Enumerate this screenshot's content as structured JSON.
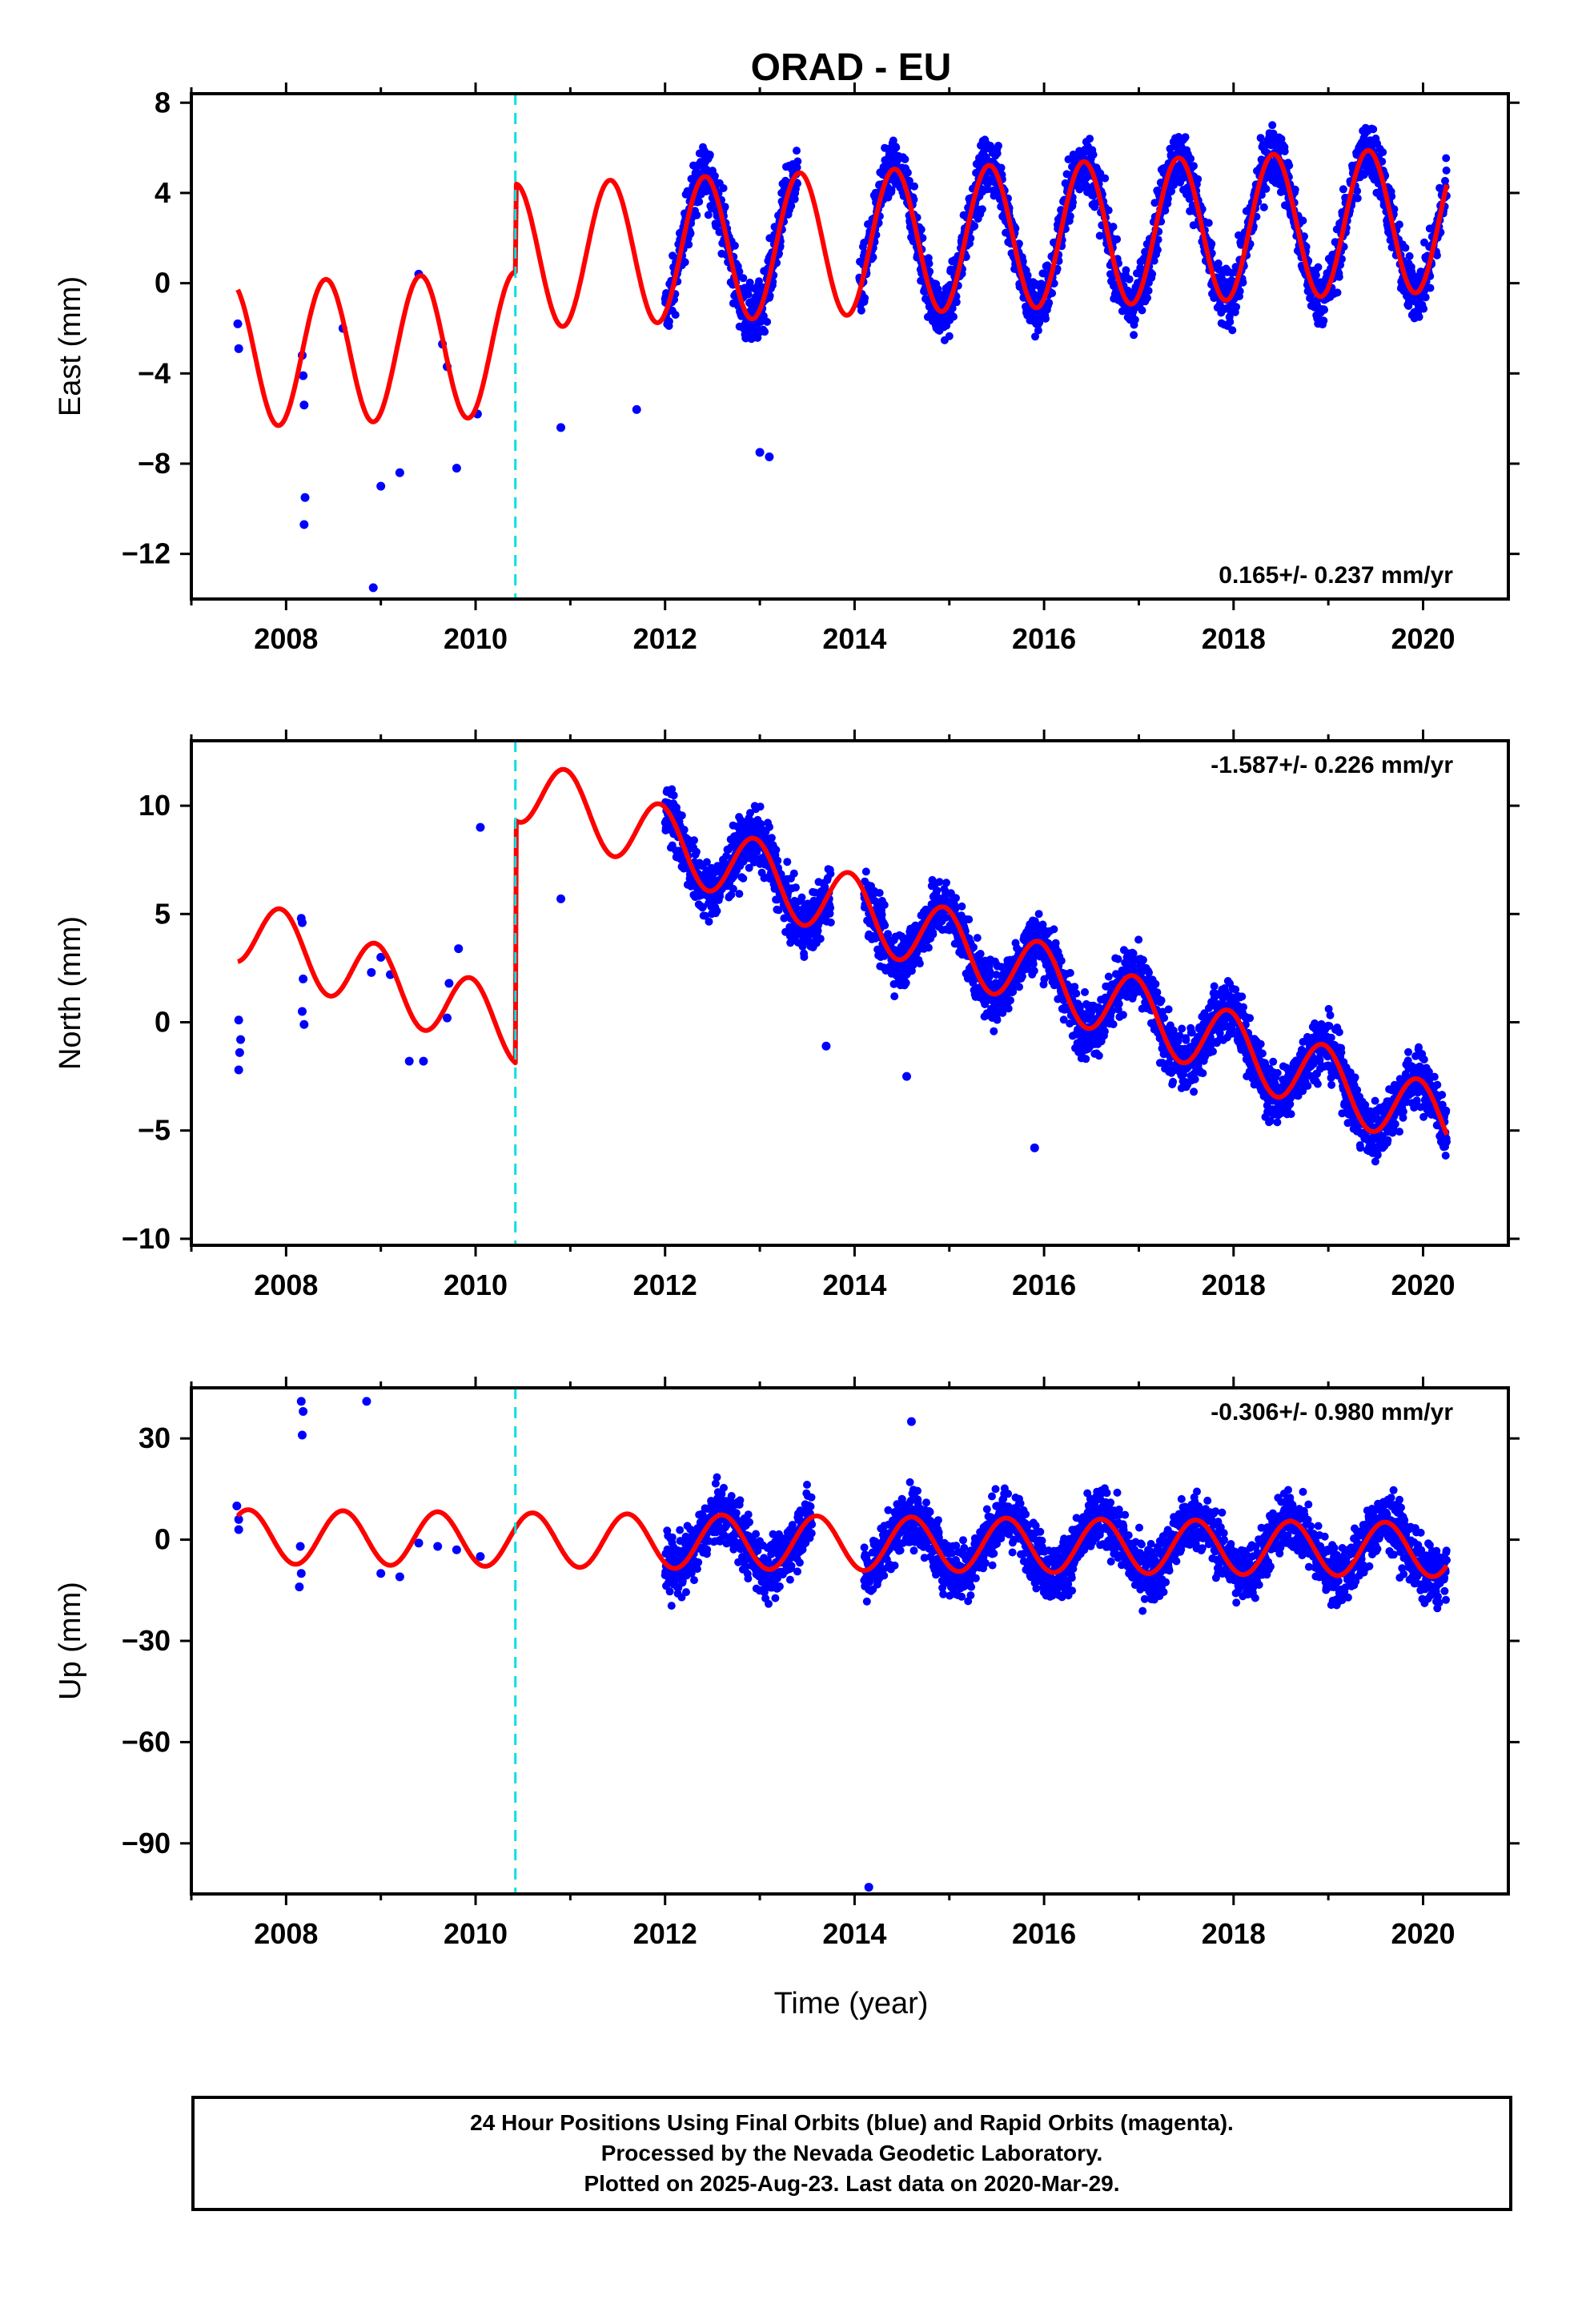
{
  "title": "ORAD - EU",
  "xlabel": "Time (year)",
  "x_ticks": [
    "2008",
    "2010",
    "2012",
    "2014",
    "2016",
    "2018",
    "2020"
  ],
  "colors": {
    "data": "#0000ff",
    "model": "#ff0000",
    "break": "#00e0e0",
    "frame": "#000000"
  },
  "footer": {
    "line1": "24 Hour Positions Using Final Orbits (blue) and Rapid Orbits (magenta).",
    "line2": "Processed by the Nevada Geodetic Laboratory.",
    "line3": "Plotted on 2025-Aug-23. Last data on 2020-Mar-29."
  },
  "chart_data": [
    {
      "type": "scatter",
      "component": "east",
      "ylabel": "East (mm)",
      "xlim": [
        2007.0,
        2020.9
      ],
      "ylim": [
        -14.0,
        8.4
      ],
      "yticks": [
        8,
        4,
        0,
        -4,
        -8,
        -12
      ],
      "ytick_labels": [
        "8",
        "4",
        "0",
        "−4",
        "−8",
        "−12"
      ],
      "rate_label": "0.165+/- 0.237 mm/yr",
      "rate_position": "bottom-right",
      "break_x": 2010.42,
      "model": {
        "line_2010": -2.7,
        "step": 3.9,
        "rate": 0.165,
        "amp": 3.2,
        "peak": 0.42
      },
      "points": [
        [
          2007.49,
          -1.8
        ],
        [
          2007.5,
          -2.9
        ],
        [
          2008.17,
          -3.2
        ],
        [
          2008.18,
          -4.1
        ],
        [
          2008.19,
          -5.4
        ],
        [
          2008.2,
          -9.5
        ],
        [
          2008.19,
          -10.7
        ],
        [
          2008.6,
          -2.0
        ],
        [
          2008.92,
          -13.5
        ],
        [
          2009.0,
          -9.0
        ],
        [
          2009.2,
          -8.4
        ],
        [
          2009.4,
          0.4
        ],
        [
          2009.65,
          -2.7
        ],
        [
          2009.7,
          -3.7
        ],
        [
          2009.8,
          -8.2
        ],
        [
          2010.02,
          -5.8
        ],
        [
          2010.9,
          -6.4
        ],
        [
          2011.7,
          -5.6
        ],
        [
          2013.0,
          -7.5
        ],
        [
          2013.1,
          -7.7
        ]
      ],
      "cloud": [
        [
          2012.0,
          2013.4
        ],
        [
          2014.05,
          2020.25
        ]
      ]
    },
    {
      "type": "scatter",
      "component": "north",
      "ylabel": "North (mm)",
      "xlim": [
        2007.0,
        2020.9
      ],
      "ylim": [
        -10.3,
        13.0
      ],
      "yticks": [
        10,
        5,
        0,
        -5,
        -10
      ],
      "ytick_labels": [
        "10",
        "5",
        "0",
        "−5",
        "−10"
      ],
      "rate_label": "-1.587+/- 0.226 mm/yr",
      "rate_position": "top-right",
      "break_x": 2010.42,
      "model": {
        "line_2010": -0.3,
        "step": 11.2,
        "rate": -1.587,
        "amp": 1.6,
        "peak": 0.95
      },
      "points": [
        [
          2007.5,
          0.1
        ],
        [
          2007.52,
          -0.8
        ],
        [
          2007.51,
          -1.4
        ],
        [
          2007.5,
          -2.2
        ],
        [
          2008.16,
          4.8
        ],
        [
          2008.17,
          4.6
        ],
        [
          2008.18,
          2.0
        ],
        [
          2008.17,
          0.5
        ],
        [
          2008.19,
          -0.1
        ],
        [
          2008.9,
          2.3
        ],
        [
          2009.0,
          3.0
        ],
        [
          2009.1,
          2.2
        ],
        [
          2009.3,
          -1.8
        ],
        [
          2009.45,
          -1.8
        ],
        [
          2009.7,
          0.2
        ],
        [
          2009.72,
          1.8
        ],
        [
          2009.82,
          3.4
        ],
        [
          2010.05,
          9.0
        ],
        [
          2010.9,
          5.7
        ],
        [
          2013.7,
          -1.1
        ],
        [
          2014.55,
          -2.5
        ],
        [
          2015.9,
          -5.8
        ]
      ],
      "cloud": [
        [
          2012.0,
          2013.75
        ],
        [
          2014.1,
          2020.25
        ]
      ]
    },
    {
      "type": "scatter",
      "component": "up",
      "ylabel": "Up (mm)",
      "xlim": [
        2007.0,
        2020.9
      ],
      "ylim": [
        -105.0,
        45.0
      ],
      "yticks": [
        30,
        0,
        -30,
        -60,
        -90
      ],
      "ytick_labels": [
        "30",
        "0",
        "−30",
        "−60",
        "−90"
      ],
      "rate_label": "-0.306+/- 0.980 mm/yr",
      "rate_position": "top-right",
      "break_x": 2010.42,
      "model": {
        "line_2010": 0.0,
        "step": 0.0,
        "rate": -0.306,
        "amp": 8.0,
        "peak": 0.6
      },
      "points": [
        [
          2007.48,
          10.0
        ],
        [
          2007.5,
          6.0
        ],
        [
          2007.5,
          3.0
        ],
        [
          2008.16,
          41.0
        ],
        [
          2008.18,
          38.0
        ],
        [
          2008.17,
          31.0
        ],
        [
          2008.15,
          -2.0
        ],
        [
          2008.16,
          -10.0
        ],
        [
          2008.14,
          -14.0
        ],
        [
          2008.85,
          41.0
        ],
        [
          2009.0,
          -10.0
        ],
        [
          2009.2,
          -11.0
        ],
        [
          2009.4,
          -1.0
        ],
        [
          2009.6,
          -2.0
        ],
        [
          2009.8,
          -3.0
        ],
        [
          2010.05,
          -5.0
        ],
        [
          2014.15,
          -103.0
        ],
        [
          2014.6,
          35.0
        ]
      ],
      "cloud": [
        [
          2012.0,
          2013.55
        ],
        [
          2014.1,
          2020.25
        ]
      ]
    }
  ]
}
